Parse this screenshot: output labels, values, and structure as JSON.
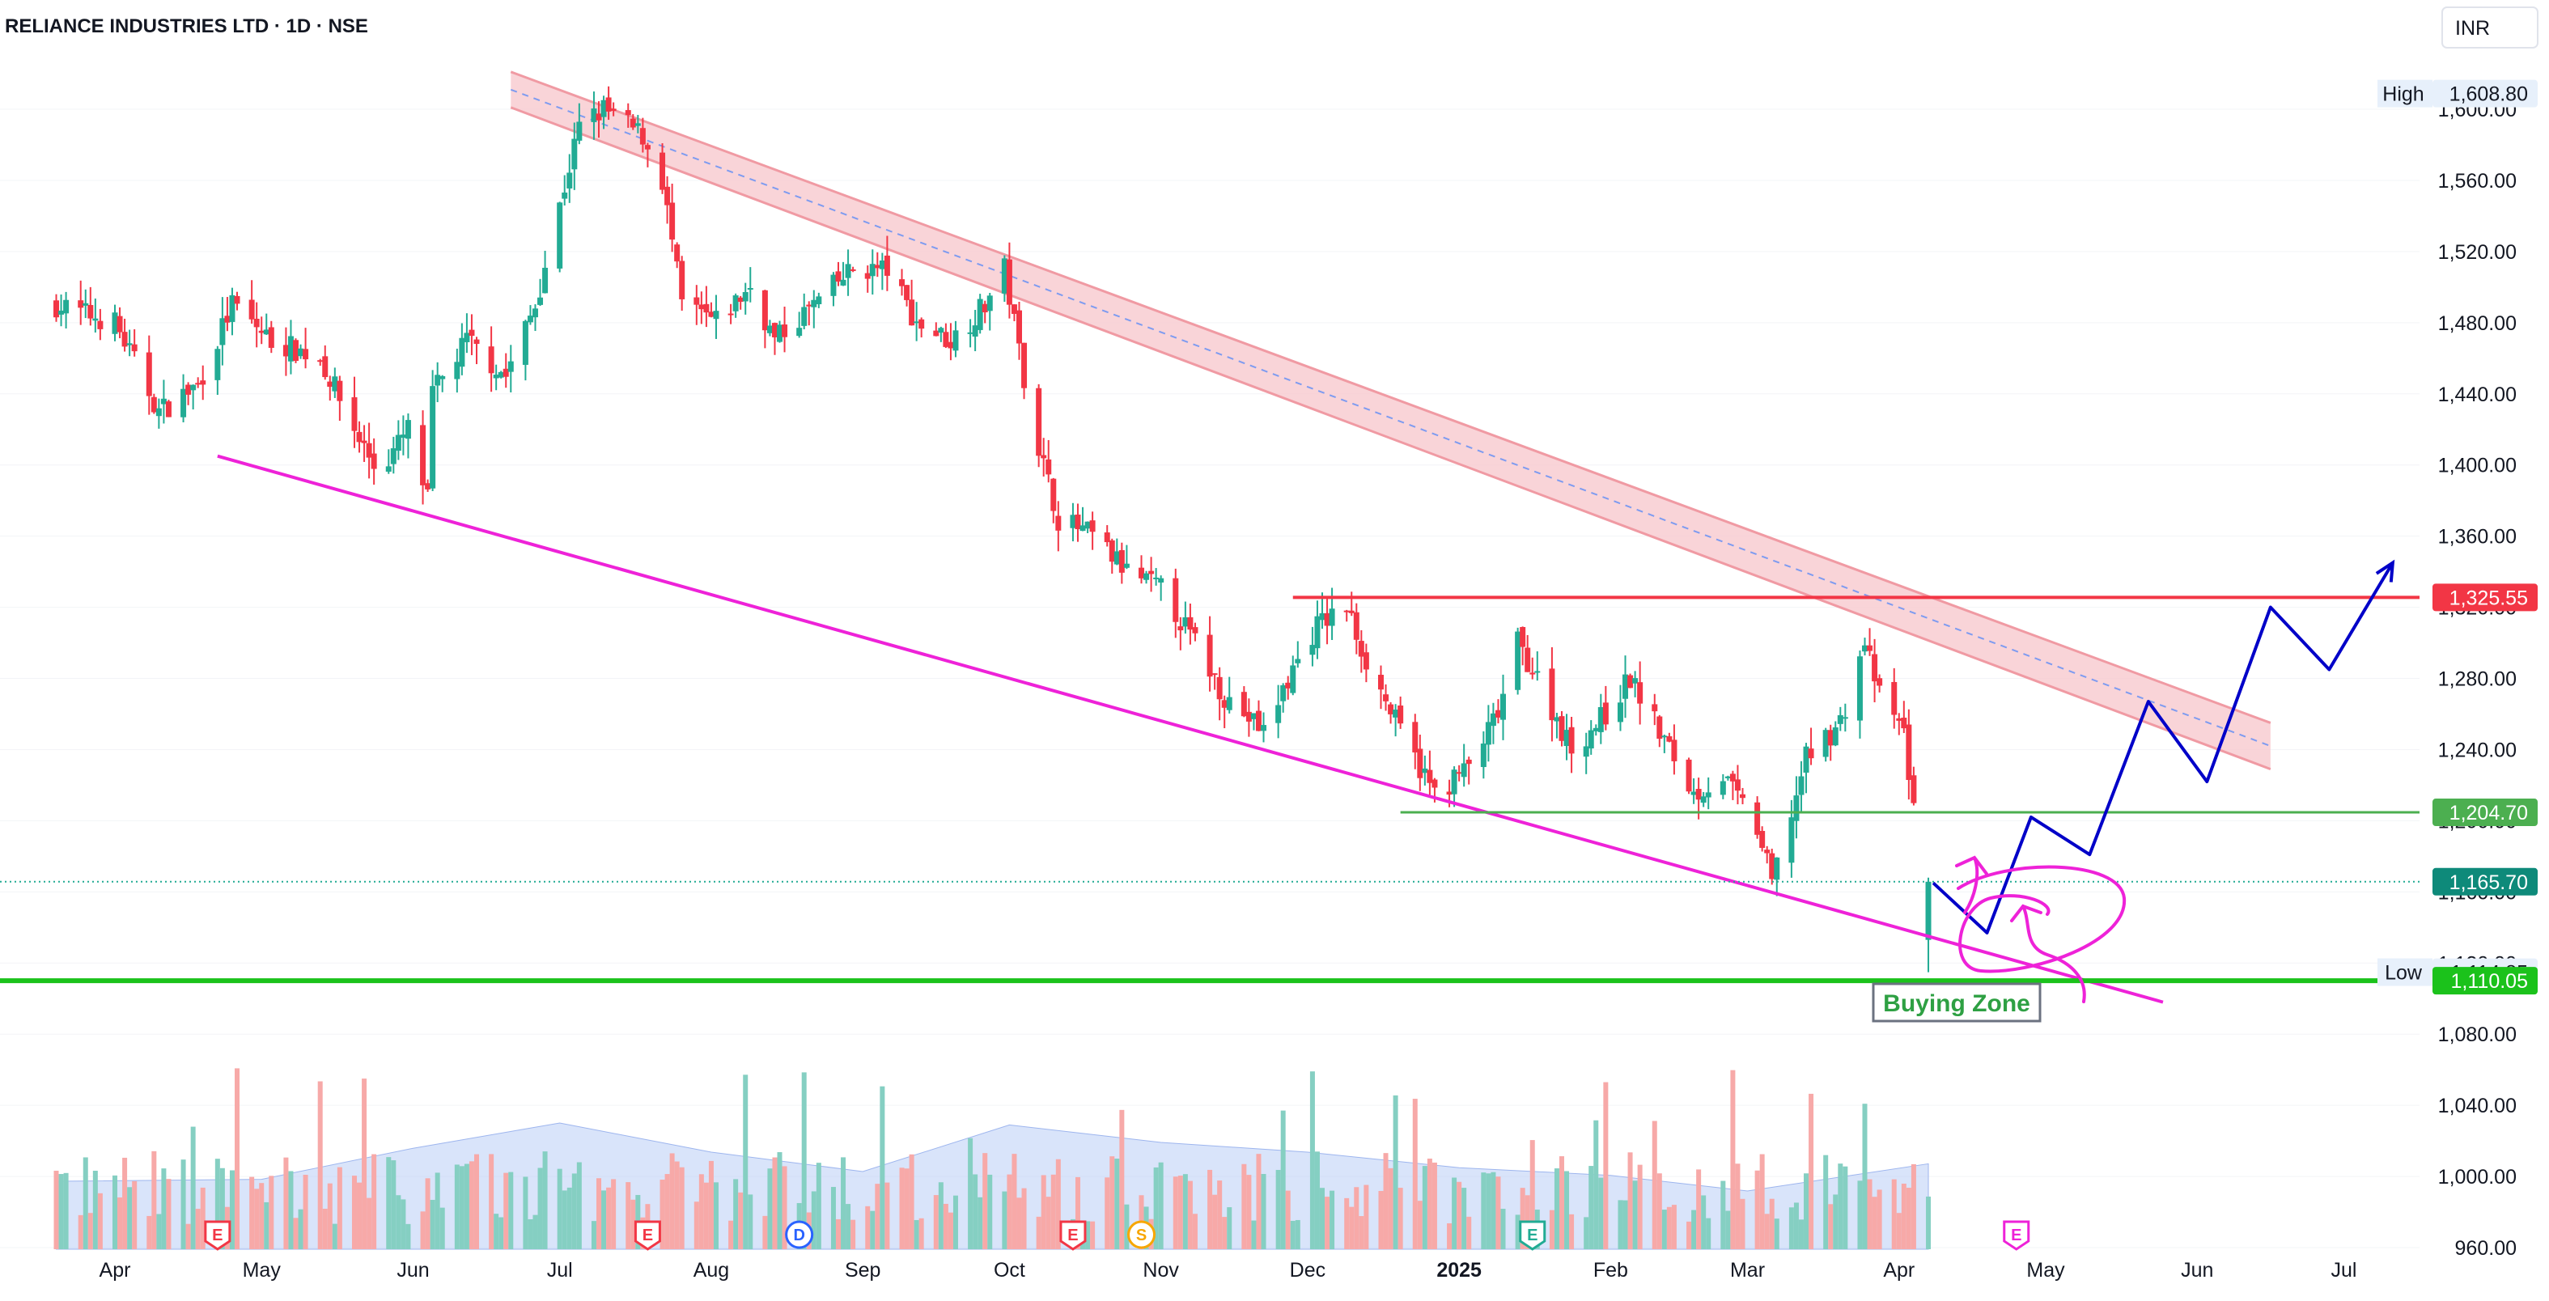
{
  "header": {
    "title": "RELIANCE INDUSTRIES LTD · 1D · NSE",
    "currency": "INR"
  },
  "colors": {
    "up": "#22ab94",
    "down": "#f23645",
    "up_volume": "#85cfc2",
    "down_volume": "#f7a9a8",
    "volume_ma": "#b9cdf5",
    "channel_fill": "#f8c9ce",
    "channel_edge": "#f09aa3",
    "channel_mid": "#7e9bf0",
    "support_trend": "#ee22d8",
    "resistance": "#f23645",
    "support": "#4caf50",
    "buy_level": "#1bc21b",
    "projection": "#0000c8"
  },
  "chart_data": {
    "type": "candlestick",
    "title": "RELIANCE INDUSTRIES LTD · 1D · NSE",
    "currency": "INR",
    "ylim": [
      940,
      1620
    ],
    "y_ticks": [
      "1,600.00",
      "1,560.00",
      "1,520.00",
      "1,480.00",
      "1,440.00",
      "1,400.00",
      "1,360.00",
      "1,320.00",
      "1,280.00",
      "1,240.00",
      "1,200.00",
      "1,160.00",
      "1,120.00",
      "1,080.00",
      "1,040.00",
      "1,000.00",
      "960.00"
    ],
    "x_ticks": [
      {
        "label": "Apr",
        "date": "2024-04-01"
      },
      {
        "label": "May",
        "date": "2024-05-01"
      },
      {
        "label": "Jun",
        "date": "2024-06-01"
      },
      {
        "label": "Jul",
        "date": "2024-07-01"
      },
      {
        "label": "Aug",
        "date": "2024-08-01"
      },
      {
        "label": "Sep",
        "date": "2024-09-01"
      },
      {
        "label": "Oct",
        "date": "2024-10-01"
      },
      {
        "label": "Nov",
        "date": "2024-11-01"
      },
      {
        "label": "Dec",
        "date": "2024-12-01"
      },
      {
        "label": "2025",
        "date": "2025-01-01",
        "bold": true
      },
      {
        "label": "Feb",
        "date": "2025-02-01"
      },
      {
        "label": "Mar",
        "date": "2025-03-01"
      },
      {
        "label": "Apr",
        "date": "2025-04-01"
      },
      {
        "label": "May",
        "date": "2025-05-01"
      },
      {
        "label": "Jun",
        "date": "2025-06-01"
      },
      {
        "label": "Jul",
        "date": "2025-07-01"
      }
    ],
    "price_path": [
      [
        "2024-03-20",
        1490
      ],
      [
        "2024-04-01",
        1480
      ],
      [
        "2024-04-10",
        1430
      ],
      [
        "2024-04-18",
        1445
      ],
      [
        "2024-04-25",
        1490
      ],
      [
        "2024-05-03",
        1470
      ],
      [
        "2024-05-13",
        1460
      ],
      [
        "2024-05-20",
        1420
      ],
      [
        "2024-05-25",
        1395
      ],
      [
        "2024-05-31",
        1420
      ],
      [
        "2024-06-05",
        1440
      ],
      [
        "2024-06-04",
        1380
      ],
      [
        "2024-06-12",
        1470
      ],
      [
        "2024-06-20",
        1450
      ],
      [
        "2024-06-26",
        1490
      ],
      [
        "2024-07-05",
        1590
      ],
      [
        "2024-07-10",
        1600
      ],
      [
        "2024-07-18",
        1585
      ],
      [
        "2024-07-22",
        1560
      ],
      [
        "2024-07-26",
        1490
      ],
      [
        "2024-08-02",
        1480
      ],
      [
        "2024-08-09",
        1500
      ],
      [
        "2024-08-14",
        1470
      ],
      [
        "2024-08-22",
        1490
      ],
      [
        "2024-08-30",
        1510
      ],
      [
        "2024-09-06",
        1510
      ],
      [
        "2024-09-12",
        1480
      ],
      [
        "2024-09-19",
        1470
      ],
      [
        "2024-09-26",
        1490
      ],
      [
        "2024-09-30",
        1510
      ],
      [
        "2024-10-04",
        1450
      ],
      [
        "2024-10-07",
        1410
      ],
      [
        "2024-10-11",
        1370
      ],
      [
        "2024-10-18",
        1360
      ],
      [
        "2024-10-25",
        1340
      ],
      [
        "2024-11-01",
        1330
      ],
      [
        "2024-11-08",
        1300
      ],
      [
        "2024-11-14",
        1270
      ],
      [
        "2024-11-22",
        1250
      ],
      [
        "2024-11-28",
        1285
      ],
      [
        "2024-12-03",
        1310
      ],
      [
        "2024-12-09",
        1320
      ],
      [
        "2024-12-13",
        1290
      ],
      [
        "2024-12-20",
        1250
      ],
      [
        "2024-12-27",
        1215
      ],
      [
        "2025-01-03",
        1230
      ],
      [
        "2025-01-09",
        1260
      ],
      [
        "2025-01-13",
        1300
      ],
      [
        "2025-01-17",
        1280
      ],
      [
        "2025-01-24",
        1240
      ],
      [
        "2025-01-31",
        1260
      ],
      [
        "2025-02-05",
        1280
      ],
      [
        "2025-02-11",
        1250
      ],
      [
        "2025-02-18",
        1215
      ],
      [
        "2025-02-24",
        1225
      ],
      [
        "2025-03-03",
        1195
      ],
      [
        "2025-03-06",
        1165
      ],
      [
        "2025-03-13",
        1235
      ],
      [
        "2025-03-20",
        1255
      ],
      [
        "2025-03-25",
        1300
      ],
      [
        "2025-03-28",
        1270
      ],
      [
        "2025-04-02",
        1250
      ],
      [
        "2025-04-04",
        1205
      ],
      [
        "2025-04-07",
        1165
      ]
    ],
    "volume_ma_path": [
      [
        "2024-03-20",
        0.35
      ],
      [
        "2024-05-01",
        0.36
      ],
      [
        "2024-06-01",
        0.52
      ],
      [
        "2024-07-01",
        0.65
      ],
      [
        "2024-08-01",
        0.5
      ],
      [
        "2024-09-01",
        0.4
      ],
      [
        "2024-10-01",
        0.64
      ],
      [
        "2024-11-01",
        0.55
      ],
      [
        "2024-12-01",
        0.5
      ],
      [
        "2025-01-01",
        0.42
      ],
      [
        "2025-02-01",
        0.38
      ],
      [
        "2025-03-01",
        0.3
      ],
      [
        "2025-04-07",
        0.44
      ]
    ],
    "annotations": {
      "high": {
        "label": "High",
        "value": "1,608.80"
      },
      "low": {
        "label": "Low",
        "value": "1,114.85"
      },
      "last": {
        "value": "1,165.70"
      },
      "resistance": {
        "value": "1,325.55",
        "from": "2024-11-28"
      },
      "support": {
        "value": "1,204.70",
        "from": "2024-12-20"
      },
      "buying_level": {
        "value": "1,110.05"
      },
      "buying_zone_label": "Buying Zone",
      "support_trendline": {
        "from": [
          "2024-04-22",
          1405
        ],
        "to": [
          "2025-05-25",
          1098
        ]
      },
      "channel": {
        "from_date": "2024-06-21",
        "to_date": "2025-06-16",
        "upper": [
          1621,
          1255
        ],
        "lower": [
          1601,
          1229
        ]
      },
      "projection": [
        [
          "2025-04-08",
          1165
        ],
        [
          "2025-04-19",
          1137
        ],
        [
          "2025-04-28",
          1202
        ],
        [
          "2025-05-10",
          1181
        ],
        [
          "2025-05-22",
          1267
        ],
        [
          "2025-06-03",
          1222
        ],
        [
          "2025-06-16",
          1320
        ],
        [
          "2025-06-28",
          1285
        ],
        [
          "2025-07-11",
          1345
        ]
      ]
    },
    "events": [
      {
        "date": "2024-04-22",
        "letter": "E",
        "color": "#f23645"
      },
      {
        "date": "2024-07-19",
        "letter": "E",
        "color": "#f23645"
      },
      {
        "date": "2024-08-19",
        "letter": "D",
        "color": "#2962ff"
      },
      {
        "date": "2024-10-14",
        "letter": "E",
        "color": "#f23645"
      },
      {
        "date": "2024-10-28",
        "letter": "S",
        "color": "#f7a600"
      },
      {
        "date": "2025-01-16",
        "letter": "E",
        "color": "#22ab94"
      },
      {
        "date": "2025-04-25",
        "letter": "E",
        "color": "#ee22d8"
      }
    ]
  }
}
